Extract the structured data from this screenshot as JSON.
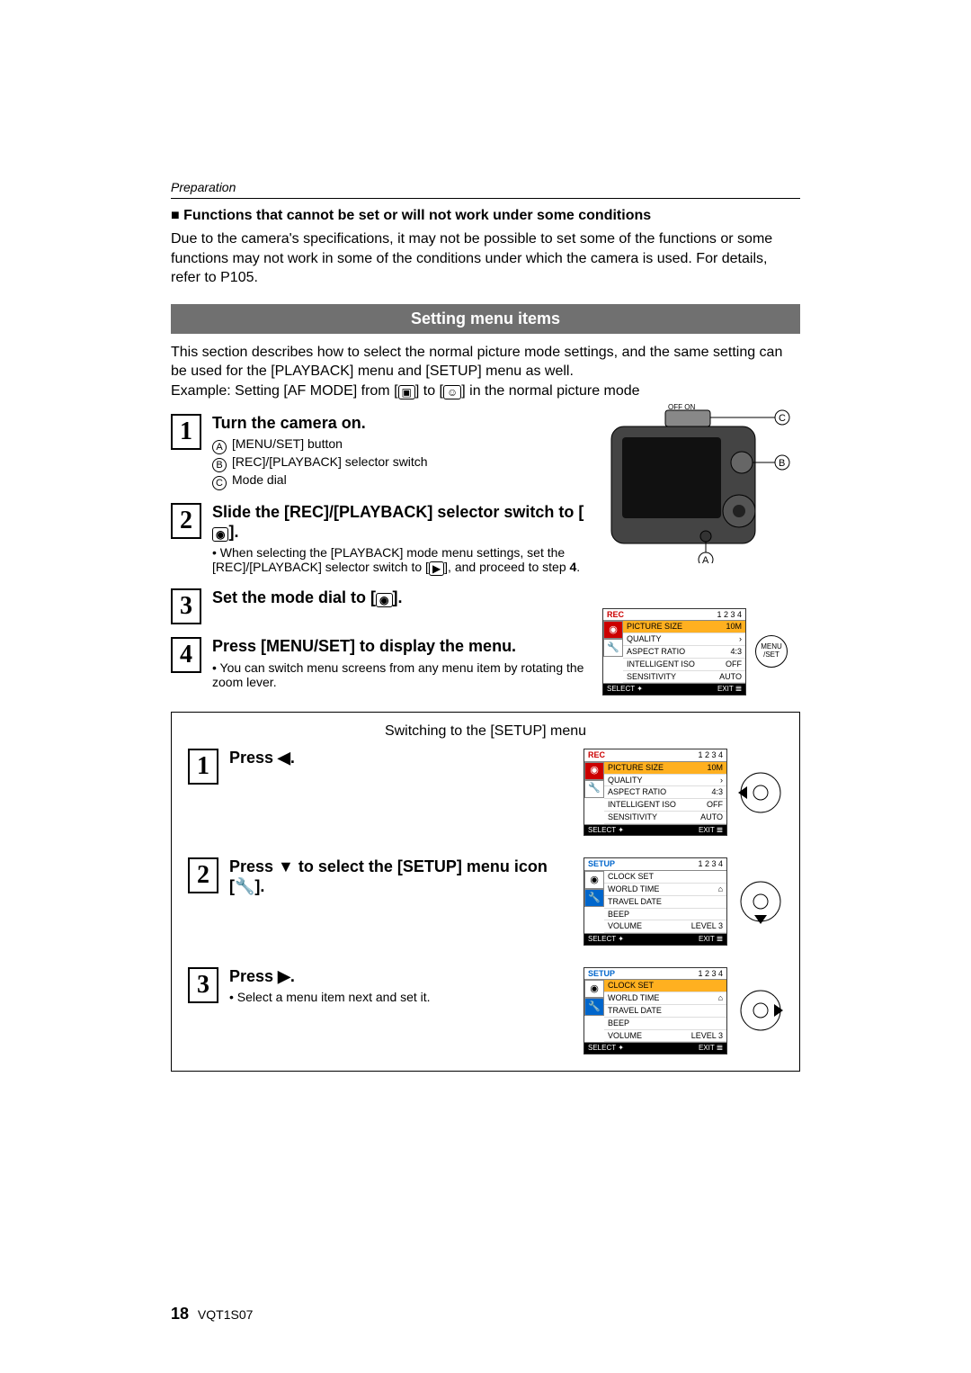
{
  "header": {
    "section": "Preparation"
  },
  "note": {
    "heading": "Functions that cannot be set or will not work under some conditions",
    "body": "Due to the camera's specifications, it may not be possible to set some of the functions or some functions may not work in some of the conditions under which the camera is used. For details, refer to P105."
  },
  "bar": {
    "title": "Setting menu items"
  },
  "intro": {
    "p1": "This section describes how to select the normal picture mode settings, and the same setting can be used for the [PLAYBACK] menu and [SETUP] menu as well.",
    "p2_pre": "Example: Setting [AF MODE] from [",
    "p2_mid": "] to [",
    "p2_post": "] in the normal picture mode"
  },
  "steps": {
    "s1": {
      "num": "1",
      "title": "Turn the camera on.",
      "items": {
        "a": "[MENU/SET] button",
        "b": "[REC]/[PLAYBACK] selector switch",
        "c": "Mode dial"
      }
    },
    "s2": {
      "num": "2",
      "title_pre": "Slide the [REC]/[PLAYBACK] selector switch to [",
      "title_post": "].",
      "note_pre": "When selecting the [PLAYBACK] mode menu settings, set the [REC]/[PLAYBACK] selector switch to [",
      "note_mid": "], and proceed to step ",
      "note_step": "4",
      "note_post": "."
    },
    "s3": {
      "num": "3",
      "title_pre": "Set the mode dial to [",
      "title_post": "]."
    },
    "s4": {
      "num": "4",
      "title": "Press [MENU/SET] to display the menu.",
      "note": "You can switch menu screens from any menu item by rotating the zoom lever."
    }
  },
  "diagram": {
    "labels": {
      "a": "A",
      "b": "B",
      "c": "C"
    },
    "switch": {
      "off": "OFF",
      "on": "ON"
    },
    "menu_btn": "MENU\n/SET"
  },
  "rec_menu": {
    "header": {
      "title": "REC",
      "pages": "1 2 3 4"
    },
    "items": [
      {
        "label": "PICTURE SIZE",
        "value": "10M",
        "hl": true
      },
      {
        "label": "QUALITY",
        "value": "›"
      },
      {
        "label": "ASPECT RATIO",
        "value": "4:3"
      },
      {
        "label": "INTELLIGENT ISO",
        "value": "OFF"
      },
      {
        "label": "SENSITIVITY",
        "value": "AUTO"
      }
    ],
    "footer": {
      "select": "SELECT ✦",
      "exit": "EXIT 𝌆"
    }
  },
  "setup_box": {
    "title": "Switching to the [SETUP] menu",
    "s1": {
      "num": "1",
      "title": "Press ◀."
    },
    "s2": {
      "num": "2",
      "title_pre": "Press ▼ to select the [SETUP] menu icon [",
      "title_post": "]."
    },
    "s3": {
      "num": "3",
      "title": "Press ▶.",
      "note": "Select a menu item next and set it."
    }
  },
  "setup_menu": {
    "header": {
      "title": "SETUP",
      "pages": "1 2 3 4"
    },
    "items": [
      {
        "label": "CLOCK SET",
        "value": ""
      },
      {
        "label": "WORLD TIME",
        "value": "⌂"
      },
      {
        "label": "TRAVEL DATE",
        "value": ""
      },
      {
        "label": "BEEP",
        "value": ""
      },
      {
        "label": "VOLUME",
        "value": "LEVEL 3"
      }
    ],
    "footer": {
      "select": "SELECT ✦",
      "exit": "EXIT 𝌆"
    }
  },
  "footer": {
    "page": "18",
    "code": "VQT1S07"
  },
  "colors": {
    "bar_bg": "#707070",
    "bar_fg": "#ffffff",
    "rec_red": "#cc0000",
    "setup_blue": "#0066cc",
    "highlight": "#ffb020",
    "black": "#000000",
    "white": "#ffffff"
  }
}
